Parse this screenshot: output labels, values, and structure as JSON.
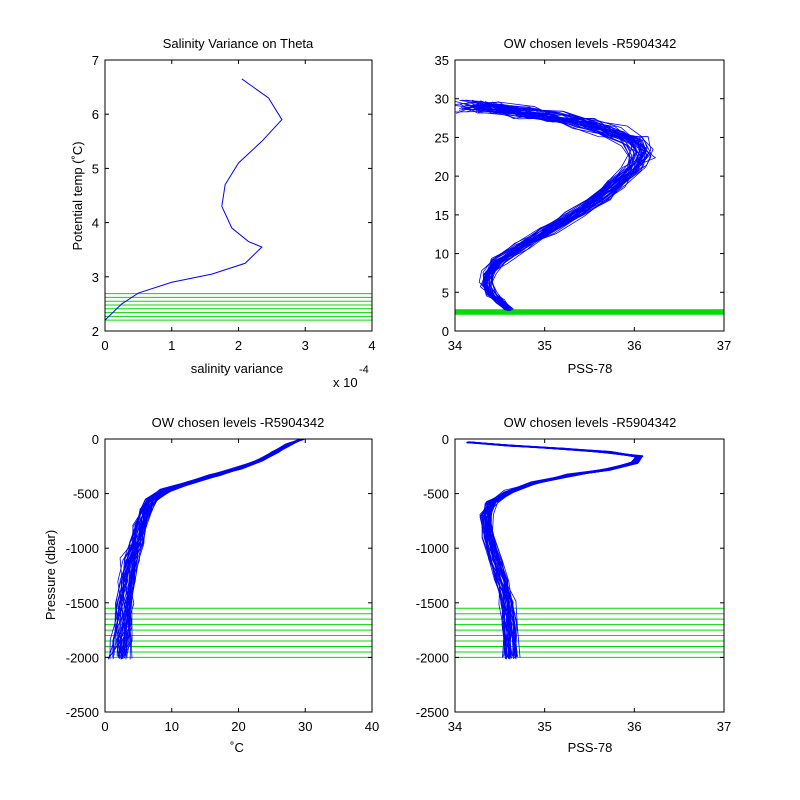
{
  "colors": {
    "profile": "#0000ff",
    "levels": "#00dd00",
    "axes": "#000000",
    "background": "#ffffff"
  },
  "chart_data": [
    {
      "id": "p1",
      "type": "line",
      "title": "Salinity Variance on Theta",
      "xlabel": "salinity variance",
      "ylabel": "Potential temp (˚C)",
      "x_exponent_label": "x 10",
      "x_exponent_power": "-4",
      "xlim": [
        0,
        4
      ],
      "ylim": [
        2,
        7
      ],
      "xticks": [
        0,
        1,
        2,
        3,
        4
      ],
      "yticks": [
        2,
        3,
        4,
        5,
        6,
        7
      ],
      "xtick_labels": [
        "0",
        "1",
        "2",
        "3",
        "4"
      ],
      "ytick_labels": [
        "2",
        "3",
        "4",
        "5",
        "6",
        "7"
      ],
      "series": [
        {
          "x": [
            0.0,
            0.25,
            0.5,
            1.0,
            1.6,
            2.1,
            2.35,
            2.15,
            1.9,
            1.75,
            1.8,
            2.0,
            2.35,
            2.65,
            2.45,
            2.05
          ],
          "y": [
            2.2,
            2.5,
            2.7,
            2.9,
            3.05,
            3.25,
            3.55,
            3.65,
            3.9,
            4.3,
            4.7,
            5.1,
            5.5,
            5.9,
            6.3,
            6.65
          ]
        }
      ],
      "hlevels": [
        2.2,
        2.27,
        2.34,
        2.41,
        2.48,
        2.55,
        2.62,
        2.69
      ]
    },
    {
      "id": "p2",
      "type": "line",
      "title": "OW chosen levels -R5904342",
      "xlabel": "PSS-78",
      "ylabel": "",
      "xlim": [
        34,
        37
      ],
      "ylim": [
        0,
        35
      ],
      "xticks": [
        34,
        35,
        36,
        37
      ],
      "yticks": [
        0,
        5,
        10,
        15,
        20,
        25,
        30,
        35
      ],
      "xtick_labels": [
        "34",
        "35",
        "36",
        "37"
      ],
      "ytick_labels": [
        "0",
        "5",
        "10",
        "15",
        "20",
        "25",
        "30",
        "35"
      ],
      "profile": {
        "x": [
          34.6,
          34.5,
          34.4,
          34.35,
          34.38,
          34.5,
          34.75,
          35.05,
          35.35,
          35.6,
          35.8,
          36.0,
          36.1,
          36.0,
          35.75,
          35.45,
          35.1,
          34.75,
          34.4,
          34.15
        ],
        "y": [
          2.8,
          3.8,
          4.8,
          6.0,
          7.5,
          9.0,
          11.0,
          13.0,
          15.0,
          17.0,
          19.0,
          21.0,
          23.0,
          24.5,
          25.8,
          26.8,
          27.6,
          28.2,
          28.8,
          29.0
        ]
      },
      "profile_count": 40,
      "profile_spread_x": 0.12,
      "profile_spread_y": 0.9,
      "hlevels": [
        2.2,
        2.3,
        2.4,
        2.5,
        2.6,
        2.7
      ]
    },
    {
      "id": "p3",
      "type": "line",
      "title": "OW chosen levels -R5904342",
      "xlabel": "˚C",
      "ylabel": "Pressure (dbar)",
      "xlim": [
        0,
        40
      ],
      "ylim": [
        -2500,
        0
      ],
      "xticks": [
        0,
        10,
        20,
        30,
        40
      ],
      "yticks": [
        -2500,
        -2000,
        -1500,
        -1000,
        -500,
        0
      ],
      "xtick_labels": [
        "0",
        "10",
        "20",
        "30",
        "40"
      ],
      "ytick_labels": [
        "-2500",
        "-2000",
        "-1500",
        "-1000",
        "-500",
        "0"
      ],
      "profile": {
        "x": [
          29.5,
          27.5,
          25.5,
          23.0,
          20.0,
          16.5,
          12.5,
          9.0,
          7.0,
          6.0,
          5.2,
          4.6,
          3.8,
          3.3,
          2.9,
          2.6,
          2.4,
          2.2
        ],
        "y": [
          0,
          -50,
          -120,
          -200,
          -270,
          -330,
          -400,
          -470,
          -550,
          -650,
          -800,
          -950,
          -1100,
          -1300,
          -1500,
          -1700,
          -1850,
          -2000
        ]
      },
      "profile_count": 40,
      "profile_spread_x": 1.0,
      "profile_spread_y": 20,
      "hlevels": [
        -1550,
        -1600,
        -1650,
        -1700,
        -1750,
        -1800,
        -1850,
        -1900,
        -1950,
        -2000
      ]
    },
    {
      "id": "p4",
      "type": "line",
      "title": "OW chosen levels -R5904342",
      "xlabel": "PSS-78",
      "ylabel": "",
      "xlim": [
        34,
        37
      ],
      "ylim": [
        -2500,
        0
      ],
      "xticks": [
        34,
        35,
        36,
        37
      ],
      "yticks": [
        -2500,
        -2000,
        -1500,
        -1000,
        -500,
        0
      ],
      "xtick_labels": [
        "34",
        "35",
        "36",
        "37"
      ],
      "ytick_labels": [
        "-2500",
        "-2000",
        "-1500",
        "-1000",
        "-500",
        "0"
      ],
      "profile": {
        "x": [
          34.15,
          34.6,
          35.2,
          35.7,
          36.05,
          36.0,
          35.7,
          35.3,
          34.9,
          34.6,
          34.4,
          34.35,
          34.38,
          34.45,
          34.52,
          34.58,
          34.6,
          34.62
        ],
        "y": [
          -30,
          -60,
          -90,
          -120,
          -160,
          -220,
          -280,
          -330,
          -400,
          -480,
          -580,
          -700,
          -900,
          -1100,
          -1300,
          -1500,
          -1700,
          -2000
        ]
      },
      "profile_count": 40,
      "profile_spread_x": 0.06,
      "profile_spread_y": 18,
      "hlevels": [
        -1550,
        -1600,
        -1650,
        -1700,
        -1750,
        -1800,
        -1850,
        -1900,
        -1950,
        -2000
      ]
    }
  ]
}
